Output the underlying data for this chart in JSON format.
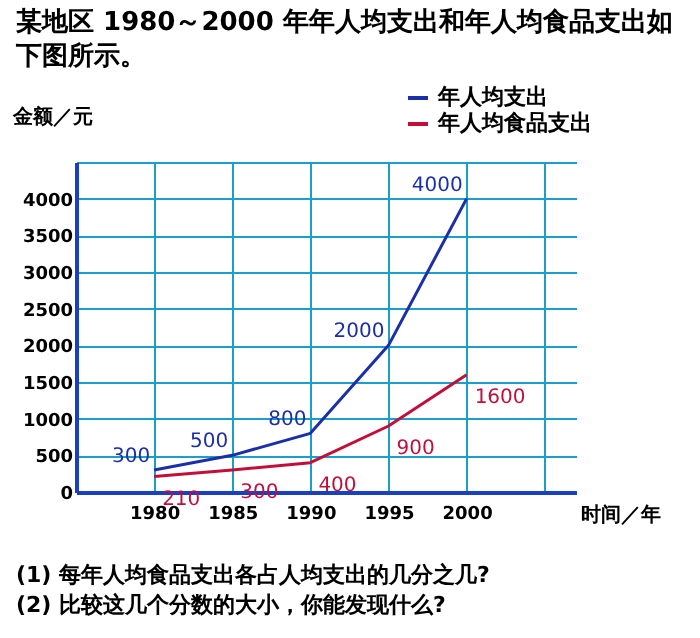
{
  "chart_data": {
    "type": "line",
    "title": "某地区 1980～2000 年年人均支出和年人均食品支出如下图所示。",
    "xlabel": "时间／年",
    "ylabel": "金额／元",
    "x": [
      1980,
      1985,
      1990,
      1995,
      2000
    ],
    "series": [
      {
        "name": "年人均支出",
        "color": "#1a2fa8",
        "values": [
          300,
          500,
          800,
          2000,
          4000
        ]
      },
      {
        "name": "年人均食品支出",
        "color": "#c0103a",
        "values": [
          210,
          300,
          400,
          900,
          1600
        ]
      }
    ],
    "xlim": [
      1975,
      2007
    ],
    "xticks": [
      1980,
      1985,
      1990,
      1995,
      2000,
      {
        "value": 2005,
        "label": null
      }
    ],
    "ylim": [
      0,
      4500
    ],
    "yticks": [
      0,
      500,
      1000,
      1500,
      2000,
      2500,
      3000,
      3500,
      4000,
      {
        "value": 4500,
        "label": null
      }
    ],
    "grid": true,
    "legend": "top right",
    "data_labels": true,
    "marker": "none",
    "line_style": "solid",
    "annotations": [
      "(1) 每年人均食品支出各占人均支出的几分之几?",
      "(2) 比较这几个分数的大小，你能发现什么?"
    ]
  }
}
